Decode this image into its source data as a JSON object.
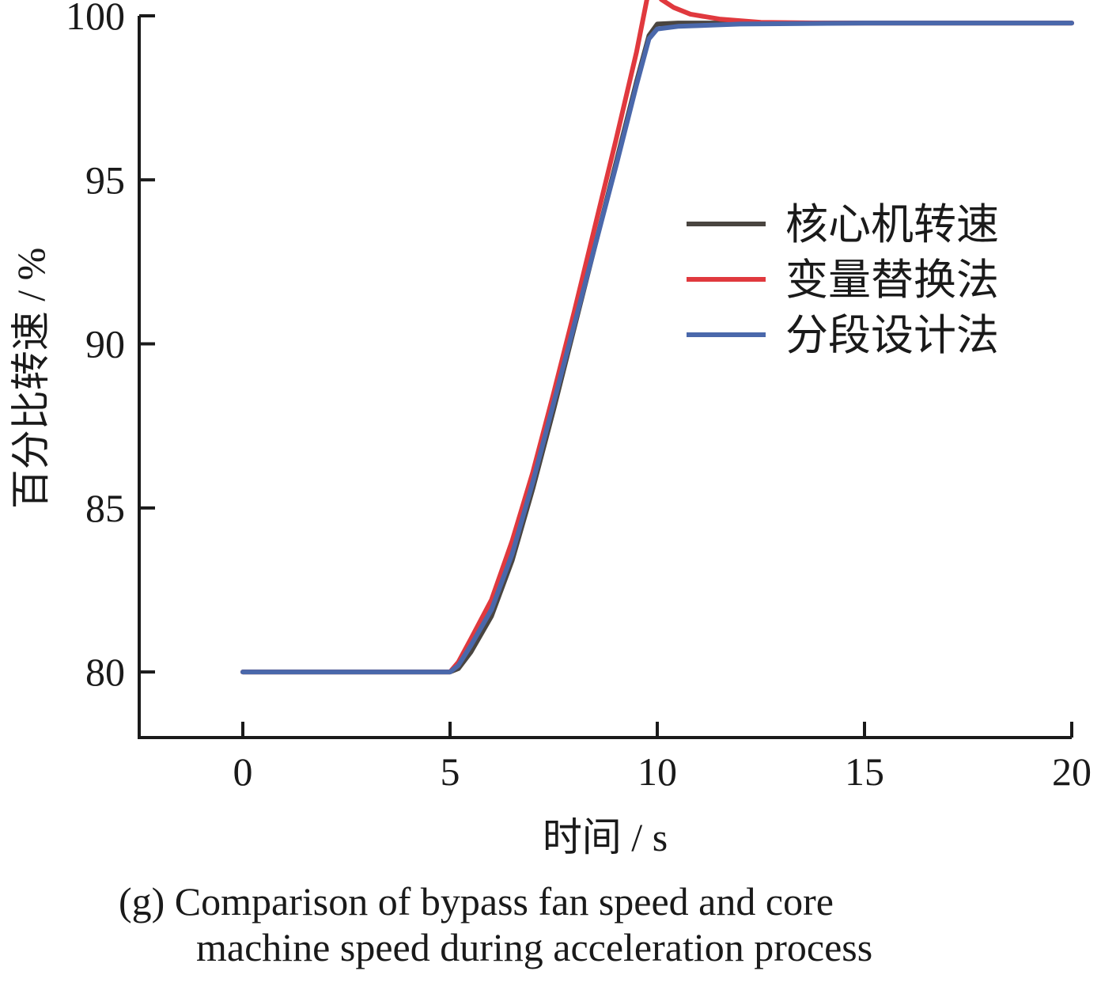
{
  "chart_data": {
    "type": "line",
    "xlabel": "时间 / s",
    "ylabel": "百分比转速 / %",
    "xlim": [
      -2.5,
      20
    ],
    "ylim": [
      78,
      100
    ],
    "x_ticks": [
      0,
      5,
      10,
      15,
      20
    ],
    "y_ticks": [
      80,
      85,
      90,
      95,
      100
    ],
    "grid": false,
    "legend_position": "right",
    "series": [
      {
        "name": "核心机转速",
        "color": "#4a4540",
        "x": [
          0,
          5,
          5.2,
          5.5,
          6,
          6.5,
          7,
          7.5,
          8,
          8.5,
          9,
          9.5,
          9.8,
          10,
          10.5,
          12,
          15,
          20
        ],
        "y": [
          80,
          80,
          80.1,
          80.6,
          81.7,
          83.4,
          85.6,
          88.0,
          90.5,
          93.0,
          95.5,
          98.0,
          99.4,
          99.75,
          99.78,
          99.78,
          99.78,
          99.78
        ]
      },
      {
        "name": "变量替换法",
        "color": "#e0393e",
        "x": [
          0,
          5,
          5.2,
          5.5,
          6,
          6.5,
          7,
          7.5,
          8,
          8.5,
          9,
          9.5,
          9.75,
          9.9,
          10.1,
          10.4,
          10.8,
          11.5,
          12.5,
          14,
          20
        ],
        "y": [
          80,
          80,
          80.3,
          81.0,
          82.2,
          84.0,
          86.1,
          88.5,
          91.0,
          93.6,
          96.2,
          98.9,
          100.5,
          100.8,
          100.5,
          100.25,
          100.05,
          99.9,
          99.8,
          99.78,
          99.78
        ]
      },
      {
        "name": "分段设计法",
        "color": "#4a68ab",
        "x": [
          0,
          5,
          5.2,
          5.5,
          6,
          6.5,
          7,
          7.5,
          8,
          8.5,
          9,
          9.5,
          9.8,
          10,
          10.5,
          12,
          15,
          20
        ],
        "y": [
          80,
          80,
          80.2,
          80.8,
          81.9,
          83.6,
          85.8,
          88.2,
          90.6,
          93.0,
          95.4,
          97.9,
          99.3,
          99.6,
          99.68,
          99.75,
          99.78,
          99.78
        ]
      }
    ]
  },
  "caption": {
    "line1": "(g) Comparison of bypass fan speed and core",
    "line2": "machine speed during acceleration process"
  }
}
